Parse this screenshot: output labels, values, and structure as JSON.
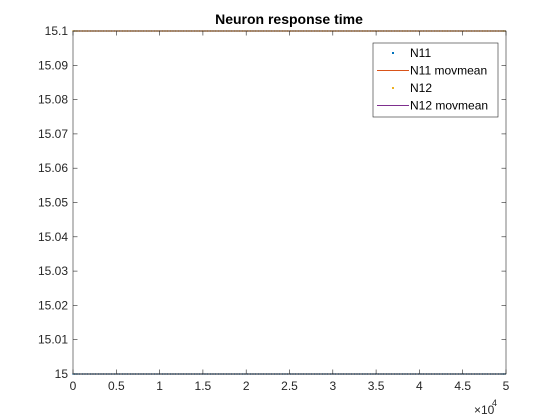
{
  "chart_data": {
    "type": "scatter",
    "title": "Neuron response time",
    "xlabel": "",
    "ylabel": "",
    "xlim": [
      0,
      50000
    ],
    "ylim": [
      15,
      15.1
    ],
    "x_ticks": [
      "0",
      "0.5",
      "1",
      "1.5",
      "2",
      "2.5",
      "3",
      "3.5",
      "4",
      "4.5",
      "5"
    ],
    "x_tick_values": [
      0,
      5000,
      10000,
      15000,
      20000,
      25000,
      30000,
      35000,
      40000,
      45000,
      50000
    ],
    "x_exponent": {
      "base": "×10",
      "power": "4"
    },
    "y_ticks": [
      "15",
      "15.01",
      "15.02",
      "15.03",
      "15.04",
      "15.05",
      "15.06",
      "15.07",
      "15.08",
      "15.09",
      "15.1"
    ],
    "y_tick_values": [
      15,
      15.01,
      15.02,
      15.03,
      15.04,
      15.05,
      15.06,
      15.07,
      15.08,
      15.09,
      15.1
    ],
    "grid": false,
    "legend_position": "top-right",
    "series": [
      {
        "name": "N11",
        "kind": "markers",
        "color": "#0072BD",
        "x_range": [
          0,
          50000
        ],
        "constant_y": 15
      },
      {
        "name": "N11 movmean",
        "kind": "line",
        "color": "#D95319",
        "x_range": [
          0,
          50000
        ],
        "constant_y": 15
      },
      {
        "name": "N12",
        "kind": "markers",
        "color": "#EDB120",
        "x_range": [
          0,
          50000
        ],
        "constant_y": 15.1
      },
      {
        "name": "N12 movmean",
        "kind": "line",
        "color": "#7E2F8E",
        "x_range": [
          0,
          50000
        ],
        "constant_y": 15.1
      }
    ]
  }
}
